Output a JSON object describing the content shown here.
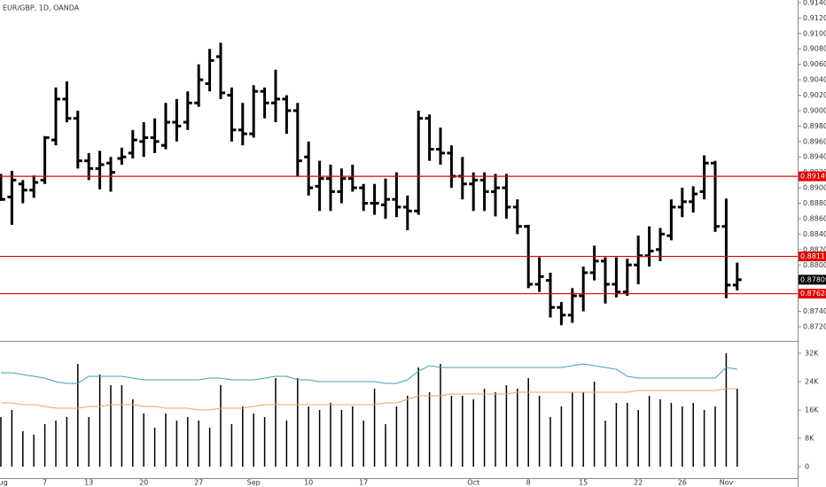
{
  "chart_data": [
    {
      "type": "ohlc",
      "title": "EUR/GBP, 1D, OANDA",
      "color": "#000000",
      "categories": [
        "Aug",
        null,
        null,
        null,
        "7",
        null,
        null,
        null,
        "13",
        null,
        null,
        null,
        null,
        "20",
        null,
        null,
        null,
        null,
        "27",
        null,
        null,
        null,
        null,
        "Sep",
        null,
        null,
        null,
        null,
        "10",
        null,
        null,
        null,
        null,
        "17",
        null,
        null,
        null,
        null,
        null,
        null,
        null,
        null,
        null,
        "Oct",
        null,
        null,
        null,
        null,
        "8",
        null,
        null,
        null,
        null,
        "15",
        null,
        null,
        null,
        null,
        "22",
        null,
        null,
        null,
        "26",
        null,
        null,
        null,
        "Nov",
        null
      ],
      "open": [
        0.891,
        0.8888,
        0.8905,
        0.8897,
        0.891,
        0.8962,
        0.9015,
        0.899,
        0.8935,
        0.8925,
        0.8932,
        0.8938,
        0.8945,
        0.896,
        0.8965,
        0.8955,
        0.8985,
        0.8985,
        0.901,
        0.9035,
        0.907,
        0.902,
        0.8975,
        0.897,
        0.9025,
        0.901,
        0.9015,
        0.9,
        0.894,
        0.8902,
        0.8912,
        0.8895,
        0.8912,
        0.89,
        0.888,
        0.8878,
        0.8885,
        0.8875,
        0.887,
        0.899,
        0.895,
        0.8945,
        0.8915,
        0.8905,
        0.891,
        0.8895,
        0.89,
        0.8875,
        0.885,
        0.8775,
        0.878,
        0.8745,
        0.8735,
        0.876,
        0.879,
        0.8805,
        0.8775,
        0.8765,
        0.88,
        0.8812,
        0.882,
        0.8838,
        0.8875,
        0.8882,
        0.8895,
        0.8932,
        0.885,
        0.8774
      ],
      "high": [
        0.8918,
        0.8922,
        0.891,
        0.8916,
        0.8967,
        0.903,
        0.9038,
        0.9,
        0.8945,
        0.8948,
        0.894,
        0.8952,
        0.8975,
        0.8985,
        0.899,
        0.901,
        0.9015,
        0.9025,
        0.906,
        0.908,
        0.9088,
        0.903,
        0.901,
        0.9033,
        0.903,
        0.9053,
        0.902,
        0.901,
        0.896,
        0.8935,
        0.893,
        0.8925,
        0.893,
        0.8905,
        0.8905,
        0.8912,
        0.892,
        0.889,
        0.9,
        0.8995,
        0.8978,
        0.8955,
        0.894,
        0.892,
        0.892,
        0.8918,
        0.8918,
        0.8885,
        0.8852,
        0.881,
        0.879,
        0.8752,
        0.877,
        0.8798,
        0.8825,
        0.881,
        0.881,
        0.8808,
        0.8838,
        0.885,
        0.8848,
        0.8885,
        0.89,
        0.8902,
        0.8942,
        0.8935,
        0.8886,
        0.8803
      ],
      "low": [
        0.8883,
        0.8852,
        0.888,
        0.8887,
        0.8905,
        0.8955,
        0.8985,
        0.8925,
        0.891,
        0.8898,
        0.8895,
        0.893,
        0.8938,
        0.894,
        0.8945,
        0.895,
        0.896,
        0.8975,
        0.9005,
        0.9025,
        0.9015,
        0.896,
        0.8955,
        0.8965,
        0.899,
        0.8985,
        0.897,
        0.8915,
        0.889,
        0.887,
        0.887,
        0.888,
        0.8895,
        0.887,
        0.8865,
        0.886,
        0.8862,
        0.8845,
        0.8865,
        0.8935,
        0.893,
        0.89,
        0.8885,
        0.887,
        0.887,
        0.8863,
        0.886,
        0.884,
        0.877,
        0.8765,
        0.8732,
        0.8722,
        0.8725,
        0.874,
        0.878,
        0.875,
        0.8758,
        0.876,
        0.8775,
        0.8798,
        0.8805,
        0.8832,
        0.8862,
        0.8868,
        0.8885,
        0.8843,
        0.8757,
        0.8767
      ],
      "close": [
        0.8885,
        0.891,
        0.8897,
        0.8907,
        0.8965,
        0.9015,
        0.899,
        0.8935,
        0.8925,
        0.893,
        0.892,
        0.894,
        0.8962,
        0.8965,
        0.896,
        0.8985,
        0.898,
        0.901,
        0.904,
        0.9065,
        0.9023,
        0.8975,
        0.897,
        0.9025,
        0.901,
        0.9015,
        0.9,
        0.8935,
        0.89,
        0.8912,
        0.8895,
        0.8912,
        0.89,
        0.888,
        0.888,
        0.8885,
        0.8875,
        0.887,
        0.899,
        0.895,
        0.8945,
        0.8915,
        0.8905,
        0.891,
        0.8895,
        0.89,
        0.8875,
        0.885,
        0.8775,
        0.8785,
        0.8745,
        0.8735,
        0.876,
        0.879,
        0.8805,
        0.8775,
        0.8765,
        0.88,
        0.8812,
        0.8818,
        0.884,
        0.8875,
        0.8882,
        0.8892,
        0.8932,
        0.885,
        0.8774,
        0.87809
      ],
      "ylim": [
        0.87016,
        0.91434
      ],
      "yticks": [
        {
          "value": 0.914,
          "label": "0.91400"
        },
        {
          "value": 0.912,
          "label": "0.91200"
        },
        {
          "value": 0.91,
          "label": "0.91000"
        },
        {
          "value": 0.908,
          "label": "0.90800"
        },
        {
          "value": 0.906,
          "label": "0.90600"
        },
        {
          "value": 0.904,
          "label": "0.90400"
        },
        {
          "value": 0.902,
          "label": "0.90200"
        },
        {
          "value": 0.9,
          "label": "0.90000"
        },
        {
          "value": 0.898,
          "label": "0.89800"
        },
        {
          "value": 0.896,
          "label": "0.89600"
        },
        {
          "value": 0.894,
          "label": "0.89400"
        },
        {
          "value": 0.892,
          "label": "0.89200"
        },
        {
          "value": 0.89,
          "label": "0.89000"
        },
        {
          "value": 0.888,
          "label": "0.88800"
        },
        {
          "value": 0.886,
          "label": "0.88600"
        },
        {
          "value": 0.884,
          "label": "0.88400"
        },
        {
          "value": 0.882,
          "label": "0.88200"
        },
        {
          "value": 0.88,
          "label": "0.88000"
        },
        {
          "value": 0.878,
          "label": "0.87800"
        },
        {
          "value": 0.876,
          "label": "0.87600"
        },
        {
          "value": 0.874,
          "label": "0.87400"
        },
        {
          "value": 0.872,
          "label": "0.87200"
        }
      ],
      "hlines": [
        {
          "value": 0.89149,
          "color": "#e00000"
        },
        {
          "value": 0.88111,
          "color": "#e00000"
        },
        {
          "value": 0.87628,
          "color": "#e00000"
        }
      ],
      "last_price": 0.87809
    },
    {
      "type": "bar",
      "color": "#000000",
      "values": [
        14000,
        16000,
        10000,
        9000,
        12000,
        13000,
        14000,
        29000,
        14000,
        26000,
        23000,
        23000,
        19000,
        15000,
        11000,
        15000,
        13000,
        14000,
        13000,
        11000,
        23000,
        12000,
        17000,
        15000,
        14000,
        25000,
        13000,
        25000,
        17000,
        16000,
        18000,
        16000,
        17000,
        13000,
        22000,
        12000,
        17000,
        20000,
        28000,
        21000,
        29000,
        20000,
        20000,
        19000,
        22000,
        21000,
        23000,
        22000,
        25000,
        20000,
        14000,
        17000,
        21000,
        21000,
        24000,
        13000,
        18000,
        18000,
        16000,
        20000,
        19000,
        18000,
        17000,
        18000,
        16000,
        17000,
        32000,
        22000
      ],
      "series": [
        {
          "color": "#3fa0b5",
          "values": [
            26500,
            26500,
            26000,
            25500,
            25000,
            24000,
            23500,
            23500,
            25500,
            25500,
            25500,
            25500,
            25000,
            24500,
            24500,
            24500,
            24500,
            24500,
            24500,
            25000,
            25000,
            24500,
            24500,
            24500,
            25000,
            25500,
            25500,
            24500,
            24500,
            24000,
            24000,
            24000,
            24000,
            24000,
            24000,
            23500,
            23500,
            24500,
            27000,
            28500,
            28000,
            28000,
            28000,
            28000,
            28000,
            28000,
            28000,
            28000,
            28000,
            28000,
            28000,
            28000,
            28500,
            29000,
            28500,
            28000,
            27500,
            25500,
            25000,
            25000,
            25000,
            25000,
            25000,
            25000,
            25000,
            25000,
            28000,
            27500
          ]
        },
        {
          "color": "#f0a060",
          "values": [
            18000,
            18000,
            17500,
            17500,
            17000,
            16500,
            16500,
            16500,
            17000,
            17000,
            17500,
            17500,
            17500,
            17000,
            17000,
            16500,
            16500,
            16500,
            16000,
            16000,
            16500,
            16500,
            16500,
            17000,
            17500,
            17500,
            17500,
            17500,
            17500,
            17500,
            17500,
            17500,
            17500,
            17500,
            17500,
            18000,
            18000,
            19000,
            20000,
            20000,
            20000,
            20500,
            20500,
            20500,
            20500,
            20500,
            20500,
            21000,
            21000,
            21000,
            21000,
            21000,
            21000,
            21000,
            21000,
            21000,
            21000,
            21000,
            21500,
            21500,
            21500,
            21500,
            21500,
            21500,
            21500,
            21500,
            22000,
            22000
          ]
        }
      ],
      "ylim": [
        -3250,
        34750
      ],
      "yticks": [
        0,
        {
          "value": 8000,
          "label": "8K"
        },
        {
          "value": 16000,
          "label": "16K"
        },
        {
          "value": 24000,
          "label": "24K"
        },
        {
          "value": 32000,
          "label": "32K"
        }
      ]
    }
  ]
}
